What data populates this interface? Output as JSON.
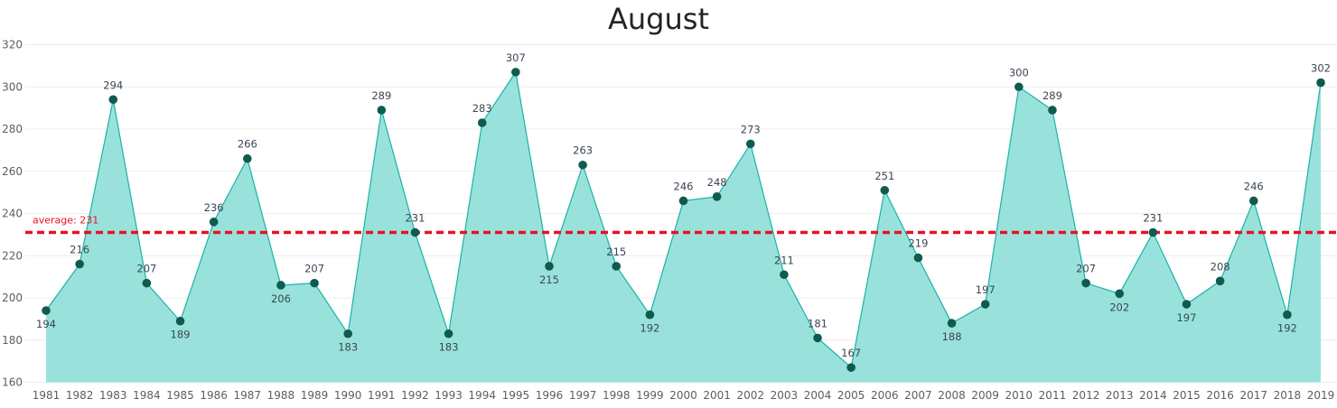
{
  "chart_data": {
    "type": "area",
    "title": "August",
    "x": [
      "1981",
      "1982",
      "1983",
      "1984",
      "1985",
      "1986",
      "1987",
      "1988",
      "1989",
      "1990",
      "1991",
      "1992",
      "1993",
      "1994",
      "1995",
      "1996",
      "1997",
      "1998",
      "1999",
      "2000",
      "2001",
      "2002",
      "2003",
      "2004",
      "2005",
      "2006",
      "2007",
      "2008",
      "2009",
      "2010",
      "2011",
      "2012",
      "2013",
      "2014",
      "2015",
      "2016",
      "2017",
      "2018",
      "2019"
    ],
    "values": [
      194,
      216,
      294,
      207,
      189,
      236,
      266,
      206,
      207,
      183,
      289,
      231,
      183,
      283,
      307,
      215,
      263,
      215,
      192,
      246,
      248,
      273,
      211,
      181,
      167,
      251,
      219,
      188,
      197,
      300,
      289,
      207,
      202,
      231,
      197,
      208,
      246,
      192,
      302
    ],
    "label_positions": [
      "below",
      "above",
      "above",
      "above",
      "below",
      "above",
      "above",
      "below",
      "above",
      "below",
      "above",
      "above",
      "below",
      "above",
      "above",
      "below",
      "above",
      "above",
      "below",
      "above",
      "above",
      "above",
      "above",
      "above",
      "above",
      "above",
      "above",
      "below",
      "above",
      "above",
      "above",
      "above",
      "below",
      "above",
      "below",
      "above",
      "above",
      "below",
      "above"
    ],
    "ylim": [
      160,
      320
    ],
    "yticks": [
      160,
      180,
      200,
      220,
      240,
      260,
      280,
      300,
      320
    ],
    "grid": true,
    "reference_line": {
      "label": "average: 231",
      "value": 231,
      "color": "#e81123"
    },
    "colors": {
      "area_fill": "#99e2dc",
      "line": "#19b3a6",
      "marker": "#0f5b50",
      "grid": "#ececec"
    }
  }
}
